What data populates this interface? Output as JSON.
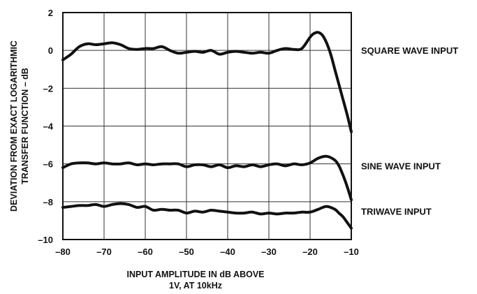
{
  "chart_data": {
    "type": "line",
    "title": "",
    "xlabel": [
      "INPUT AMPLITUDE IN dB ABOVE",
      "1V, AT 10kHz"
    ],
    "ylabel": [
      "DEVIATION FROM EXACT LOGARITHMIC",
      "TRANSFER FUNCTION – dB"
    ],
    "xlim": [
      -80,
      -10
    ],
    "ylim": [
      -10,
      2
    ],
    "x_ticks": [
      -80,
      -70,
      -60,
      -50,
      -40,
      -30,
      -20,
      -10
    ],
    "x_tick_labels": [
      "–80",
      "–70",
      "–60",
      "–50",
      "–40",
      "–30",
      "–20",
      "–10"
    ],
    "y_ticks": [
      -10,
      -8,
      -6,
      -4,
      -2,
      0,
      2
    ],
    "y_tick_labels": [
      "–10",
      "–8",
      "–6",
      "–4",
      "–2",
      "0",
      "2"
    ],
    "grid": true,
    "line_color": "#111111",
    "series": [
      {
        "name": "SQUARE WAVE INPUT",
        "label_y": 0,
        "x": [
          -80,
          -78,
          -76,
          -74,
          -72,
          -70,
          -68,
          -66,
          -64,
          -62,
          -60,
          -58,
          -56,
          -54,
          -52,
          -50,
          -48,
          -46,
          -44,
          -42,
          -40,
          -38,
          -36,
          -34,
          -32,
          -30,
          -28,
          -26,
          -24,
          -22,
          -20,
          -19,
          -18,
          -17,
          -16,
          -15,
          -14,
          -13,
          -12,
          -11,
          -10
        ],
        "y": [
          -0.5,
          -0.2,
          0.2,
          0.35,
          0.3,
          0.35,
          0.4,
          0.3,
          0.1,
          0.05,
          0.1,
          0.1,
          0.2,
          0.0,
          -0.15,
          -0.1,
          -0.05,
          -0.1,
          0.0,
          -0.2,
          -0.1,
          -0.05,
          -0.1,
          -0.15,
          -0.1,
          -0.15,
          0.0,
          0.1,
          0.05,
          0.1,
          0.7,
          0.9,
          0.95,
          0.8,
          0.4,
          -0.2,
          -1.0,
          -1.8,
          -2.6,
          -3.4,
          -4.3
        ]
      },
      {
        "name": "SINE WAVE INPUT",
        "label_y": -6.1,
        "x": [
          -80,
          -78,
          -76,
          -74,
          -72,
          -70,
          -68,
          -66,
          -64,
          -62,
          -60,
          -58,
          -56,
          -54,
          -52,
          -50,
          -48,
          -46,
          -44,
          -42,
          -40,
          -38,
          -36,
          -34,
          -32,
          -30,
          -28,
          -26,
          -24,
          -22,
          -20,
          -18,
          -16,
          -14,
          -13,
          -12,
          -11,
          -10
        ],
        "y": [
          -6.2,
          -6.0,
          -5.95,
          -5.95,
          -6.0,
          -5.95,
          -6.0,
          -6.0,
          -5.95,
          -6.05,
          -6.0,
          -6.05,
          -6.0,
          -6.0,
          -6.0,
          -6.15,
          -6.05,
          -6.05,
          -6.15,
          -6.05,
          -6.2,
          -6.1,
          -6.15,
          -6.05,
          -6.15,
          -6.05,
          -6.0,
          -6.1,
          -6.0,
          -6.05,
          -5.95,
          -5.7,
          -5.6,
          -5.8,
          -6.1,
          -6.6,
          -7.2,
          -7.9
        ]
      },
      {
        "name": "TRIWAVE INPUT",
        "label_y": -8.5,
        "x": [
          -80,
          -78,
          -76,
          -74,
          -72,
          -70,
          -68,
          -66,
          -64,
          -62,
          -60,
          -58,
          -56,
          -54,
          -52,
          -50,
          -48,
          -46,
          -44,
          -42,
          -40,
          -38,
          -36,
          -34,
          -32,
          -30,
          -28,
          -26,
          -24,
          -22,
          -20,
          -18,
          -16,
          -14,
          -13,
          -12,
          -11,
          -10
        ],
        "y": [
          -8.3,
          -8.25,
          -8.2,
          -8.2,
          -8.15,
          -8.25,
          -8.15,
          -8.1,
          -8.15,
          -8.3,
          -8.25,
          -8.45,
          -8.4,
          -8.45,
          -8.45,
          -8.6,
          -8.5,
          -8.55,
          -8.45,
          -8.5,
          -8.55,
          -8.6,
          -8.6,
          -8.55,
          -8.65,
          -8.6,
          -8.65,
          -8.6,
          -8.6,
          -8.55,
          -8.55,
          -8.4,
          -8.25,
          -8.4,
          -8.6,
          -8.8,
          -9.1,
          -9.4
        ]
      }
    ]
  }
}
